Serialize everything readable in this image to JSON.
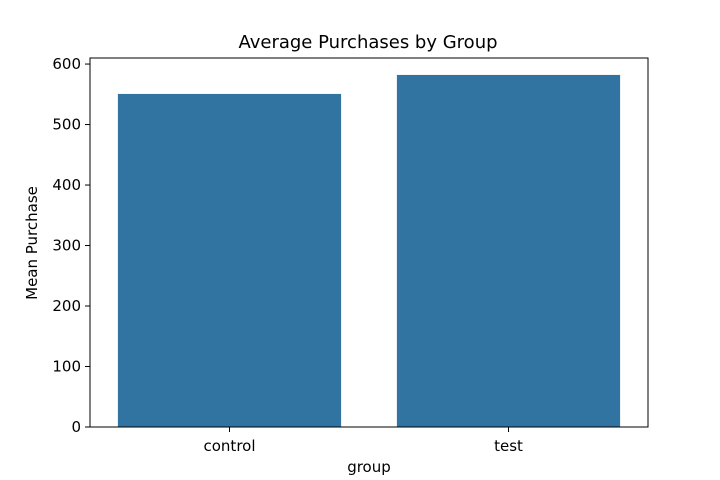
{
  "chart_data": {
    "type": "bar",
    "title": "Average Purchases by Group",
    "xlabel": "group",
    "ylabel": "Mean Purchase",
    "categories": [
      "control",
      "test"
    ],
    "values": [
      550.6,
      582.0
    ],
    "ylim": [
      0,
      610
    ],
    "yticks": [
      0,
      100,
      200,
      300,
      400,
      500,
      600
    ],
    "grid": false,
    "legend": "none",
    "bar_color": "#3274a1"
  }
}
